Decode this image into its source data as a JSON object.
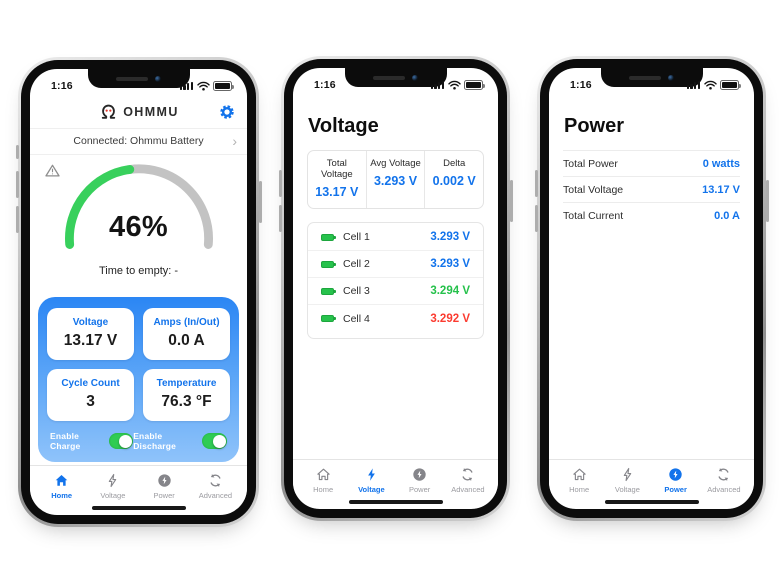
{
  "status": {
    "time": "1:16"
  },
  "colors": {
    "accent": "#1273eb",
    "toggle_green": "#30cc54",
    "gauge_green": "#38d05c",
    "gauge_gray": "#c3c3c3",
    "cell_blue": "#1273eb",
    "cell_green": "#25c14b",
    "cell_red": "#fb3b30"
  },
  "tabs": [
    {
      "label": "Home"
    },
    {
      "label": "Voltage"
    },
    {
      "label": "Power"
    },
    {
      "label": "Advanced"
    }
  ],
  "home_screen": {
    "brand": "OHMMU",
    "connected_label": "Connected: Ohmmu Battery",
    "chevron": "›",
    "gauge": {
      "percent": 46,
      "percent_label": "46%",
      "time_to_empty": "Time to empty:  -"
    },
    "stats": [
      {
        "label": "Voltage",
        "value": "13.17 V"
      },
      {
        "label": "Amps (In/Out)",
        "value": "0.0 A"
      },
      {
        "label": "Cycle Count",
        "value": "3"
      },
      {
        "label": "Temperature",
        "value": "76.3 °F"
      }
    ],
    "toggles": [
      {
        "label": "Enable Charge",
        "state": "on"
      },
      {
        "label": "Enable Discharge",
        "state": "on"
      }
    ],
    "active_tab": "Home"
  },
  "voltage_screen": {
    "title": "Voltage",
    "summary": [
      {
        "label": "Total Voltage",
        "value": "13.17 V"
      },
      {
        "label": "Avg Voltage",
        "value": "3.293 V"
      },
      {
        "label": "Delta",
        "value": "0.002 V"
      }
    ],
    "cells": [
      {
        "label": "Cell 1",
        "value": "3.293 V",
        "color": "#1273eb"
      },
      {
        "label": "Cell 2",
        "value": "3.293 V",
        "color": "#1273eb"
      },
      {
        "label": "Cell 3",
        "value": "3.294 V",
        "color": "#25c14b"
      },
      {
        "label": "Cell 4",
        "value": "3.292 V",
        "color": "#fb3b30"
      }
    ],
    "active_tab": "Voltage"
  },
  "power_screen": {
    "title": "Power",
    "rows": [
      {
        "label": "Total Power",
        "value": "0 watts"
      },
      {
        "label": "Total Voltage",
        "value": "13.17 V"
      },
      {
        "label": "Total Current",
        "value": "0.0 A"
      }
    ],
    "active_tab": "Power"
  }
}
